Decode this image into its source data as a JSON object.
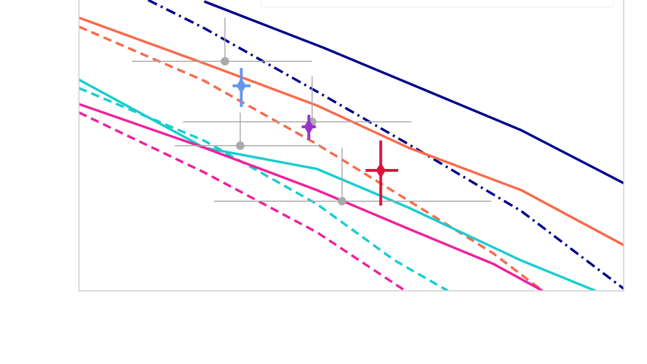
{
  "chart_data": {
    "type": "line",
    "xlim": [
      0,
      100
    ],
    "ylim": [
      0,
      100
    ],
    "series": [
      {
        "color": "#00008b",
        "dash": "solid",
        "x": [
          23.0,
          45.0,
          60.5,
          81.2,
          100
        ],
        "y": [
          99.5,
          83.5,
          71.4,
          55.2,
          37.0
        ]
      },
      {
        "color": "#00008b",
        "dash": "dashdot",
        "x": [
          12.7,
          23.0,
          43.7,
          60.5,
          81.2,
          100
        ],
        "y": [
          100,
          90.3,
          68.5,
          50.4,
          27.4,
          0.7
        ]
      },
      {
        "color": "#f96a4b",
        "dash": "solid",
        "x": [
          0,
          23.0,
          43.7,
          60.5,
          81.2,
          100
        ],
        "y": [
          93.9,
          78.2,
          63.7,
          49.2,
          34.6,
          15.7
        ]
      },
      {
        "color": "#f96a4b",
        "dash": "dashed",
        "x": [
          0,
          23.0,
          43.7,
          60.5,
          76.1,
          85.1
        ],
        "y": [
          90.8,
          72.2,
          50.4,
          31.0,
          12.8,
          0
        ]
      },
      {
        "color": "#18cdd0",
        "dash": "solid",
        "x": [
          0,
          23.0,
          43.7,
          60.5,
          81.2,
          94.8
        ],
        "y": [
          72.6,
          49.2,
          41.9,
          28.6,
          10.4,
          0
        ]
      },
      {
        "color": "#18cdd0",
        "dash": "dashed",
        "x": [
          0,
          23.0,
          43.7,
          58.0,
          67.7
        ],
        "y": [
          69.7,
          51.6,
          29.8,
          10.4,
          0
        ]
      },
      {
        "color": "#f0209b",
        "dash": "solid",
        "x": [
          0,
          23.0,
          43.7,
          60.5,
          76.1,
          85.1
        ],
        "y": [
          64.2,
          49.2,
          34.6,
          21.3,
          9.2,
          0
        ]
      },
      {
        "color": "#f0209b",
        "dash": "dashed",
        "x": [
          0,
          23.0,
          43.7,
          59.9
        ],
        "y": [
          61.3,
          40.7,
          20.1,
          0
        ]
      }
    ],
    "points": [
      {
        "color": "#aaaaaa",
        "x": 26.8,
        "y": 78.9,
        "xerr": [
          17.1,
          16.0
        ],
        "yerr": [
          0,
          15.0
        ]
      },
      {
        "color": "#aaaaaa",
        "x": 29.6,
        "y": 49.9,
        "xerr": [
          12.0,
          14.9
        ],
        "yerr": [
          0,
          11.4
        ]
      },
      {
        "color": "#aaaaaa",
        "x": 42.8,
        "y": 58.1,
        "xerr": [
          23.7,
          18.2
        ],
        "yerr": [
          0,
          15.7
        ]
      },
      {
        "color": "#aaaaaa",
        "x": 48.3,
        "y": 30.8,
        "xerr": [
          23.5,
          27.4
        ],
        "yerr": [
          0,
          18.4
        ]
      },
      {
        "color": "#6495ed",
        "x": 29.8,
        "y": 70.5,
        "xerr": [
          1.6,
          1.7
        ],
        "yerr": [
          7.3,
          6.1
        ]
      },
      {
        "color": "#9932cc",
        "x": 42.2,
        "y": 56.4,
        "xerr": [
          1.3,
          1.3
        ],
        "yerr": [
          4.4,
          4.1
        ]
      },
      {
        "color": "#dc143c",
        "x": 55.4,
        "y": 41.4,
        "xerr": [
          2.8,
          3.2
        ],
        "yerr": [
          12.1,
          10.3
        ]
      }
    ]
  }
}
